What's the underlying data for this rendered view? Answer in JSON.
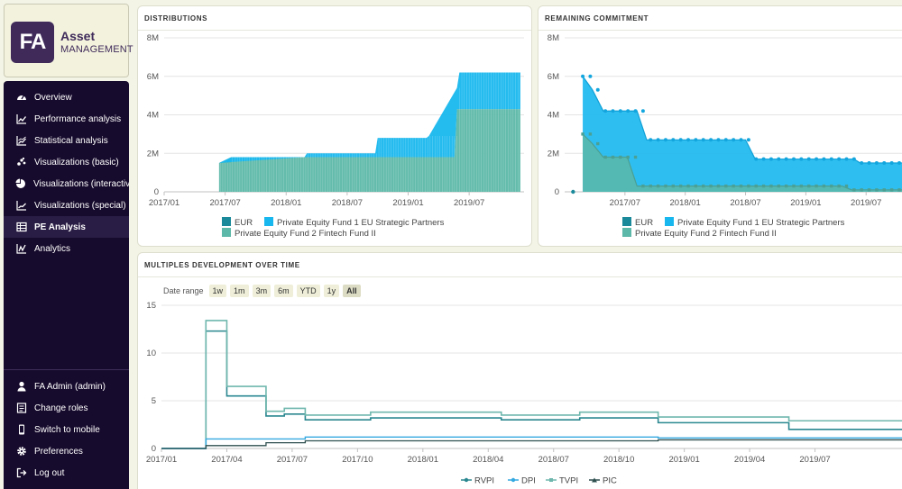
{
  "logo": {
    "mark": "FA",
    "title": "Asset",
    "subtitle": "MANAGEMENT"
  },
  "sidebar": {
    "items": [
      {
        "label": "Overview",
        "icon": "dashboard-icon"
      },
      {
        "label": "Performance analysis",
        "icon": "trend-icon"
      },
      {
        "label": "Statistical analysis",
        "icon": "stats-icon"
      },
      {
        "label": "Visualizations (basic)",
        "icon": "scatter-icon"
      },
      {
        "label": "Visualizations (interactive)",
        "icon": "pie-icon"
      },
      {
        "label": "Visualizations (special)",
        "icon": "line-icon"
      },
      {
        "label": "PE Analysis",
        "icon": "table-icon",
        "active": true
      },
      {
        "label": "Analytics",
        "icon": "analytics-icon"
      }
    ],
    "footer": [
      {
        "label": "FA Admin (admin)",
        "icon": "user-icon"
      },
      {
        "label": "Change roles",
        "icon": "roles-icon"
      },
      {
        "label": "Switch to mobile",
        "icon": "mobile-icon"
      },
      {
        "label": "Preferences",
        "icon": "gear-icon"
      },
      {
        "label": "Log out",
        "icon": "logout-icon"
      }
    ]
  },
  "colors": {
    "eur": "#1a8a9a",
    "fund1": "#18b7ee",
    "fund2": "#5cb8a8",
    "rvpi": "#2a8790",
    "dpi": "#35a9e0",
    "tvpi": "#6fb7ad",
    "pic": "#2f4f4f"
  },
  "range_selector": {
    "label": "Date range",
    "buttons": [
      "1w",
      "1m",
      "3m",
      "6m",
      "YTD",
      "1y",
      "All"
    ],
    "selected": "All"
  },
  "chart_data": [
    {
      "id": "distributions",
      "type": "area",
      "stacked": true,
      "title": "DISTRIBUTIONS",
      "y_ticks": [
        "0",
        "2M",
        "4M",
        "6M",
        "8M"
      ],
      "ylim": [
        0,
        8000000
      ],
      "x_ticks": [
        "2017/01",
        "2017/07",
        "2018/01",
        "2018/07",
        "2019/01",
        "2019/07"
      ],
      "x_range": [
        2017.0,
        2019.95
      ],
      "legend": [
        "EUR",
        "Private Equity Fund 1 EU Strategic Partners",
        "Private Equity Fund 2 Fintech Fund II"
      ],
      "series": [
        {
          "name": "Private Equity Fund 2 Fintech Fund II",
          "points": [
            [
              2017.45,
              1500000
            ],
            [
              2017.55,
              1800000
            ],
            [
              2019.4,
              4300000
            ],
            [
              2019.92,
              4300000
            ]
          ]
        },
        {
          "name": "Private Equity Fund 1 EU Strategic Partners",
          "points": [
            [
              2017.45,
              0
            ],
            [
              2018.15,
              0
            ],
            [
              2018.17,
              200000
            ],
            [
              2018.73,
              200000
            ],
            [
              2018.75,
              1000000
            ],
            [
              2019.15,
              1000000
            ],
            [
              2019.17,
              1100000
            ],
            [
              2019.4,
              1100000
            ],
            [
              2019.42,
              1900000
            ],
            [
              2019.92,
              1900000
            ]
          ]
        }
      ]
    },
    {
      "id": "remaining-commitment",
      "type": "area",
      "title": "REMAINING COMMITMENT",
      "y_ticks": [
        "0",
        "2M",
        "4M",
        "6M",
        "8M"
      ],
      "ylim": [
        0,
        8000000
      ],
      "x_ticks": [
        "2017/07",
        "2018/01",
        "2018/07",
        "2019/01",
        "2019/07"
      ],
      "x_range": [
        2017.0,
        2019.85
      ],
      "legend": [
        "EUR",
        "Private Equity Fund 1 EU Strategic Partners",
        "Private Equity Fund 2 Fintech Fund II"
      ],
      "series": [
        {
          "name": "Private Equity Fund 1 EU Strategic Partners",
          "points": [
            [
              2017.15,
              6000000
            ],
            [
              2017.23,
              5300000
            ],
            [
              2017.32,
              4200000
            ],
            [
              2017.6,
              4200000
            ],
            [
              2017.68,
              2700000
            ],
            [
              2018.5,
              2700000
            ],
            [
              2018.58,
              1700000
            ],
            [
              2019.4,
              1700000
            ],
            [
              2019.45,
              1500000
            ],
            [
              2019.85,
              1500000
            ]
          ]
        },
        {
          "name": "Private Equity Fund 2 Fintech Fund II",
          "points": [
            [
              2017.15,
              3000000
            ],
            [
              2017.23,
              2500000
            ],
            [
              2017.32,
              1800000
            ],
            [
              2017.52,
              1800000
            ],
            [
              2017.6,
              300000
            ],
            [
              2019.3,
              300000
            ],
            [
              2019.38,
              100000
            ],
            [
              2019.85,
              100000
            ]
          ]
        },
        {
          "name": "EUR",
          "points": [
            [
              2017.07,
              0
            ]
          ]
        }
      ]
    },
    {
      "id": "multiples",
      "type": "line",
      "title": "MULTIPLES DEVELOPMENT OVER TIME",
      "y_ticks": [
        "0",
        "5",
        "10",
        "15"
      ],
      "ylim": [
        0,
        15
      ],
      "x_ticks": [
        "2017/01",
        "2017/04",
        "2017/07",
        "2017/10",
        "2018/01",
        "2018/04",
        "2018/07",
        "2018/10",
        "2019/01",
        "2019/04",
        "2019/07"
      ],
      "x_range": [
        2017.0,
        2019.85
      ],
      "legend": [
        "RVPI",
        "DPI",
        "TVPI",
        "PIC"
      ],
      "series": [
        {
          "name": "RVPI",
          "points": [
            [
              2017.0,
              0
            ],
            [
              2017.17,
              0
            ],
            [
              2017.17,
              12.3
            ],
            [
              2017.25,
              12.3
            ],
            [
              2017.25,
              5.5
            ],
            [
              2017.4,
              5.5
            ],
            [
              2017.4,
              3.4
            ],
            [
              2017.47,
              3.4
            ],
            [
              2017.47,
              3.6
            ],
            [
              2017.55,
              3.6
            ],
            [
              2017.55,
              3.0
            ],
            [
              2017.8,
              3.0
            ],
            [
              2017.8,
              3.2
            ],
            [
              2018.3,
              3.2
            ],
            [
              2018.3,
              3.0
            ],
            [
              2018.6,
              3.0
            ],
            [
              2018.6,
              3.2
            ],
            [
              2018.9,
              3.2
            ],
            [
              2018.9,
              2.7
            ],
            [
              2019.4,
              2.7
            ],
            [
              2019.4,
              2.0
            ],
            [
              2019.85,
              2.0
            ]
          ]
        },
        {
          "name": "TVPI",
          "points": [
            [
              2017.0,
              0
            ],
            [
              2017.17,
              0
            ],
            [
              2017.17,
              13.4
            ],
            [
              2017.25,
              13.4
            ],
            [
              2017.25,
              6.5
            ],
            [
              2017.4,
              6.5
            ],
            [
              2017.4,
              3.9
            ],
            [
              2017.47,
              3.9
            ],
            [
              2017.47,
              4.2
            ],
            [
              2017.55,
              4.2
            ],
            [
              2017.55,
              3.5
            ],
            [
              2017.8,
              3.5
            ],
            [
              2017.8,
              3.8
            ],
            [
              2018.3,
              3.8
            ],
            [
              2018.3,
              3.5
            ],
            [
              2018.6,
              3.5
            ],
            [
              2018.6,
              3.8
            ],
            [
              2018.9,
              3.8
            ],
            [
              2018.9,
              3.3
            ],
            [
              2019.4,
              3.3
            ],
            [
              2019.4,
              2.9
            ],
            [
              2019.85,
              2.9
            ]
          ]
        },
        {
          "name": "DPI",
          "points": [
            [
              2017.0,
              0
            ],
            [
              2017.17,
              0
            ],
            [
              2017.17,
              1.0
            ],
            [
              2017.55,
              1.0
            ],
            [
              2017.55,
              1.2
            ],
            [
              2018.9,
              1.2
            ],
            [
              2018.9,
              1.1
            ],
            [
              2019.85,
              1.1
            ]
          ]
        },
        {
          "name": "PIC",
          "points": [
            [
              2017.0,
              0
            ],
            [
              2017.17,
              0
            ],
            [
              2017.17,
              0.3
            ],
            [
              2017.4,
              0.3
            ],
            [
              2017.4,
              0.6
            ],
            [
              2017.55,
              0.6
            ],
            [
              2017.55,
              0.8
            ],
            [
              2018.9,
              0.8
            ],
            [
              2018.9,
              0.9
            ],
            [
              2019.85,
              0.9
            ]
          ]
        }
      ]
    }
  ]
}
